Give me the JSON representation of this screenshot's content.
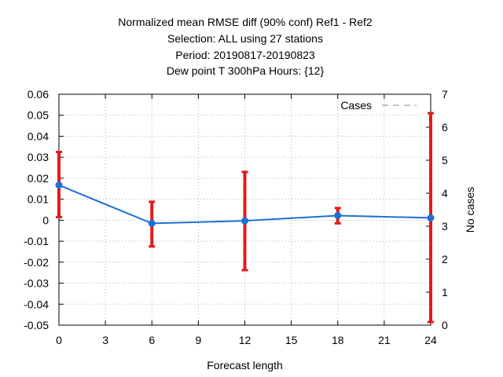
{
  "chart_data": {
    "type": "line",
    "title_lines": [
      "Normalized mean RMSE diff (90% conf) Ref1 - Ref2",
      "Selection: ALL using    27 stations",
      "Period: 20190817-20190823",
      "Dew point T 300hPa   Hours: {12}"
    ],
    "xlabel": "Forecast length",
    "ylabel": "",
    "y2label": "No cases",
    "xlim": [
      0,
      24
    ],
    "ylim": [
      -0.05,
      0.06
    ],
    "y2lim": [
      0,
      7
    ],
    "xticks": [
      0,
      3,
      6,
      9,
      12,
      15,
      18,
      21,
      24
    ],
    "yticks": [
      -0.05,
      -0.04,
      -0.03,
      -0.02,
      -0.01,
      0,
      0.01,
      0.02,
      0.03,
      0.04,
      0.05,
      0.06
    ],
    "ytick_labels": [
      "-0.05",
      "-0.04",
      "-0.03",
      "-0.02",
      "-0.01",
      "0",
      "0.01",
      "0.02",
      "0.03",
      "0.04",
      "0.05",
      "0.06"
    ],
    "y2ticks": [
      0,
      1,
      2,
      3,
      4,
      5,
      6,
      7
    ],
    "grid": true,
    "legend": {
      "position": "top-right",
      "entries": [
        "Cases"
      ]
    },
    "series": [
      {
        "x": [
          0,
          6,
          12,
          18,
          24
        ],
        "values": [
          0.0167,
          -0.0015,
          -0.0003,
          0.0022,
          0.0011
        ],
        "err_low": [
          0.0015,
          -0.0125,
          -0.0238,
          -0.0015,
          -0.0485
        ],
        "err_high": [
          0.0325,
          0.0088,
          0.023,
          0.0058,
          0.051
        ],
        "color": "#1e6fd9",
        "error_color": "#e31a1c"
      },
      {
        "name": "Cases",
        "axis": "y2",
        "x": [
          0,
          6,
          12,
          18,
          24
        ],
        "values": [
          7,
          7,
          7,
          7,
          7
        ],
        "color": "#888888",
        "style": "dashed"
      }
    ]
  }
}
